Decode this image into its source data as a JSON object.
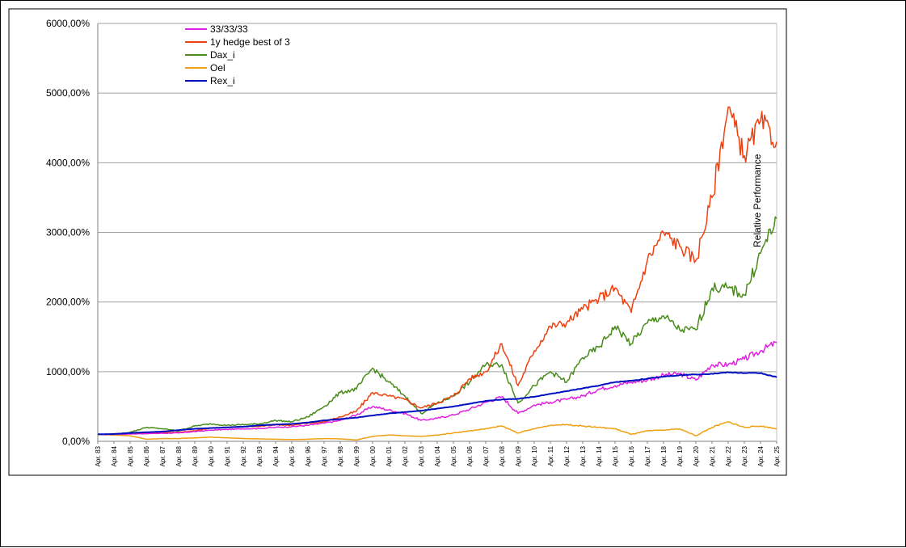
{
  "chart_data": {
    "type": "line",
    "title": "",
    "xlabel": "",
    "ylabel": "",
    "annotation": "Relative Performance",
    "y_ticks": [
      "0,00%",
      "1000,00%",
      "2000,00%",
      "3000,00%",
      "4000,00%",
      "5000,00%",
      "6000,00%"
    ],
    "ylim": [
      0,
      6000
    ],
    "grid": true,
    "legend_position": "top-left",
    "categories": [
      "Apr. 83",
      "Apr. 84",
      "Apr. 85",
      "Apr. 86",
      "Apr. 87",
      "Apr. 88",
      "Apr. 89",
      "Apr. 90",
      "Apr. 91",
      "Apr. 92",
      "Apr. 93",
      "Apr. 94",
      "Apr. 95",
      "Apr. 96",
      "Apr. 97",
      "Apr. 98",
      "Apr. 99",
      "Apr. 00",
      "Apr. 01",
      "Apr. 02",
      "Apr. 03",
      "Apr. 04",
      "Apr. 05",
      "Apr. 06",
      "Apr. 07",
      "Apr. 08",
      "Apr. 09",
      "Apr. 10",
      "Apr. 11",
      "Apr. 12",
      "Apr. 13",
      "Apr. 14",
      "Apr. 15",
      "Apr. 16",
      "Apr. 17",
      "Apr. 18",
      "Apr. 19",
      "Apr. 20",
      "Apr. 21",
      "Apr. 22",
      "Apr. 23",
      "Apr. 24",
      "Apr. 25"
    ],
    "x": [
      1983,
      1984,
      1985,
      1986,
      1987,
      1988,
      1989,
      1990,
      1991,
      1992,
      1993,
      1994,
      1995,
      1996,
      1997,
      1998,
      1999,
      2000,
      2001,
      2002,
      2003,
      2004,
      2005,
      2006,
      2007,
      2008,
      2009,
      2010,
      2011,
      2012,
      2013,
      2014,
      2015,
      2016,
      2017,
      2018,
      2019,
      2020,
      2021,
      2022,
      2023,
      2024,
      2025
    ],
    "series": [
      {
        "name": "33/33/33",
        "color": "#e020e0",
        "values": [
          100,
          100,
          105,
          110,
          115,
          120,
          140,
          160,
          170,
          180,
          185,
          200,
          210,
          230,
          260,
          300,
          380,
          500,
          450,
          400,
          300,
          330,
          380,
          460,
          560,
          640,
          400,
          520,
          560,
          600,
          650,
          750,
          800,
          850,
          880,
          950,
          970,
          880,
          1100,
          1100,
          1180,
          1300,
          1420
        ]
      },
      {
        "name": "1y hedge best of 3",
        "color": "#f04010",
        "values": [
          100,
          100,
          110,
          120,
          125,
          130,
          150,
          190,
          200,
          210,
          215,
          240,
          230,
          260,
          280,
          350,
          430,
          700,
          650,
          600,
          480,
          550,
          650,
          900,
          1000,
          1400,
          800,
          1300,
          1650,
          1700,
          1900,
          2050,
          2200,
          1850,
          2600,
          3000,
          2800,
          2600,
          3500,
          4800,
          4100,
          4600,
          4300
        ]
      },
      {
        "name": "Dax_i",
        "color": "#4a8c1c",
        "values": [
          100,
          100,
          130,
          200,
          180,
          150,
          220,
          250,
          230,
          240,
          250,
          300,
          280,
          350,
          500,
          700,
          750,
          1050,
          850,
          650,
          400,
          550,
          650,
          850,
          1100,
          1100,
          550,
          800,
          1000,
          850,
          1200,
          1350,
          1650,
          1400,
          1700,
          1800,
          1600,
          1600,
          2200,
          2200,
          2100,
          2700,
          3200
        ]
      },
      {
        "name": "Oel",
        "color": "#f0a010",
        "values": [
          100,
          90,
          80,
          30,
          40,
          40,
          50,
          60,
          50,
          40,
          35,
          30,
          25,
          30,
          40,
          35,
          20,
          70,
          90,
          80,
          70,
          90,
          120,
          150,
          180,
          220,
          120,
          180,
          230,
          240,
          220,
          200,
          180,
          100,
          150,
          160,
          180,
          80,
          200,
          280,
          200,
          220,
          180
        ]
      },
      {
        "name": "Rex_i",
        "color": "#0010c0",
        "values": [
          100,
          105,
          120,
          130,
          140,
          160,
          180,
          190,
          200,
          210,
          230,
          240,
          250,
          270,
          300,
          320,
          340,
          370,
          400,
          420,
          440,
          470,
          500,
          540,
          580,
          600,
          610,
          640,
          680,
          720,
          760,
          800,
          850,
          870,
          900,
          930,
          950,
          960,
          970,
          990,
          980,
          980,
          920
        ]
      }
    ]
  }
}
